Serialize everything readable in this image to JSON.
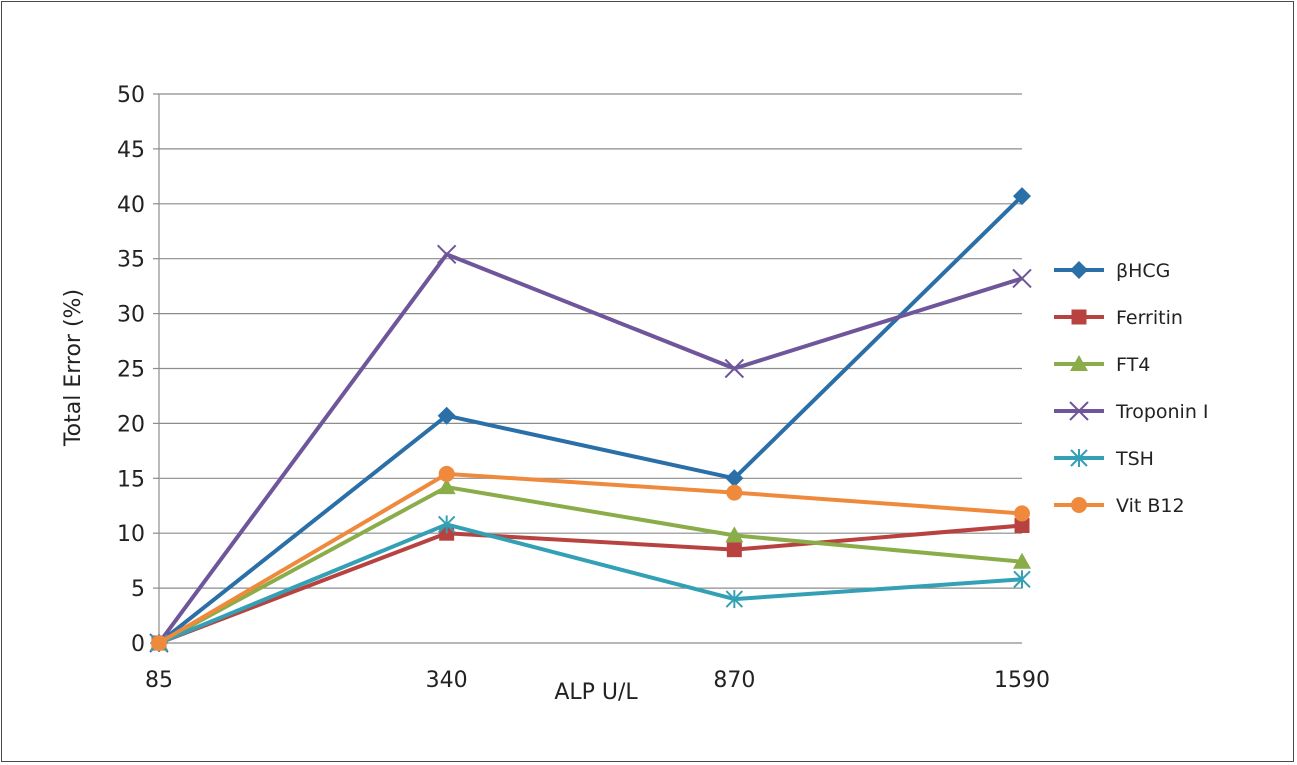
{
  "chart_data": {
    "type": "line",
    "xlabel": "ALP U/L",
    "ylabel": "Total Error (%)",
    "categories": [
      "85",
      "340",
      "870",
      "1590"
    ],
    "ylim": [
      0,
      50
    ],
    "yticks": [
      0,
      5,
      10,
      15,
      20,
      25,
      30,
      35,
      40,
      45,
      50
    ],
    "grid": true,
    "legend_position": "right",
    "series": [
      {
        "name": "βHCG",
        "color": "#2a6fa7",
        "marker": "diamond",
        "values": [
          0,
          20.7,
          15.0,
          40.7
        ]
      },
      {
        "name": "Ferritin",
        "color": "#b8423f",
        "marker": "square",
        "values": [
          0,
          10.0,
          8.5,
          10.7
        ]
      },
      {
        "name": "FT4",
        "color": "#8aad4a",
        "marker": "triangle",
        "values": [
          0,
          14.2,
          9.8,
          7.4
        ]
      },
      {
        "name": "Troponin I",
        "color": "#6f569a",
        "marker": "x",
        "values": [
          0,
          35.4,
          25.0,
          33.2
        ]
      },
      {
        "name": "TSH",
        "color": "#33a0b5",
        "marker": "asterisk",
        "values": [
          0,
          10.8,
          4.0,
          5.8
        ]
      },
      {
        "name": "Vit B12",
        "color": "#ef8a3c",
        "marker": "circle",
        "values": [
          0,
          15.4,
          13.7,
          11.8
        ]
      }
    ]
  }
}
